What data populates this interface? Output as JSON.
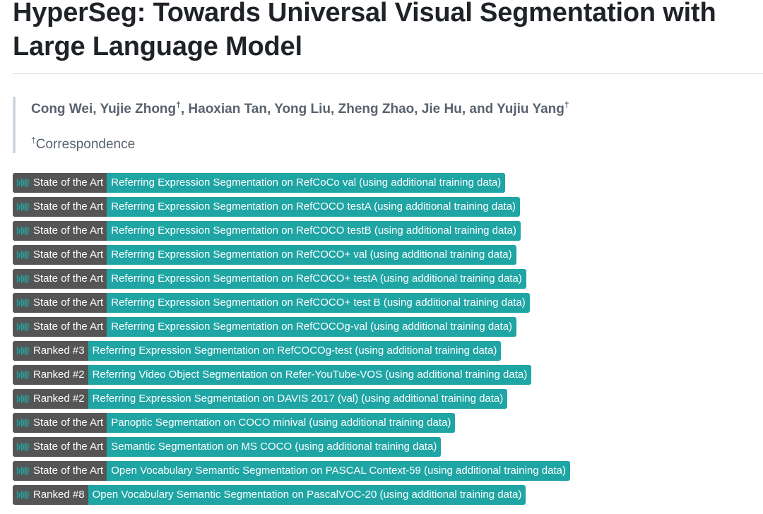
{
  "title": "HyperSeg: Towards Universal Visual Segmentation with Large Language Model",
  "authors": {
    "names": [
      {
        "name": "Cong Wei",
        "mark": ""
      },
      {
        "name": "Yujie Zhong",
        "mark": "†"
      },
      {
        "name": "Haoxian Tan",
        "mark": ""
      },
      {
        "name": "Yong Liu",
        "mark": ""
      },
      {
        "name": "Zheng Zhao",
        "mark": ""
      },
      {
        "name": "Jie Hu",
        "mark": ""
      },
      {
        "name": "Yujiu Yang",
        "mark": "†"
      }
    ],
    "conjunction": "and"
  },
  "correspondence": {
    "mark": "†",
    "label": "Correspondence"
  },
  "badges": [
    {
      "rank": "State of the Art",
      "task": "Referring Expression Segmentation on RefCoCo val (using additional training data)"
    },
    {
      "rank": "State of the Art",
      "task": "Referring Expression Segmentation on RefCOCO testA (using additional training data)"
    },
    {
      "rank": "State of the Art",
      "task": "Referring Expression Segmentation on RefCOCO testB (using additional training data)"
    },
    {
      "rank": "State of the Art",
      "task": "Referring Expression Segmentation on RefCOCO+ val (using additional training data)"
    },
    {
      "rank": "State of the Art",
      "task": "Referring Expression Segmentation on RefCOCO+ testA (using additional training data)"
    },
    {
      "rank": "State of the Art",
      "task": "Referring Expression Segmentation on RefCOCO+ test B (using additional training data)"
    },
    {
      "rank": "State of the Art",
      "task": "Referring Expression Segmentation on RefCOCOg-val (using additional training data)"
    },
    {
      "rank": "Ranked #3",
      "task": "Referring Expression Segmentation on RefCOCOg-test (using additional training data)"
    },
    {
      "rank": "Ranked #2",
      "task": "Referring Video Object Segmentation on Refer-YouTube-VOS (using additional training data)"
    },
    {
      "rank": "Ranked #2",
      "task": "Referring Expression Segmentation on DAVIS 2017 (val) (using additional training data)"
    },
    {
      "rank": "State of the Art",
      "task": "Panoptic Segmentation on COCO minival (using additional training data)"
    },
    {
      "rank": "State of the Art",
      "task": "Semantic Segmentation on MS COCO (using additional training data)"
    },
    {
      "rank": "State of the Art",
      "task": "Open Vocabulary Semantic Segmentation on PASCAL Context-59 (using additional training data)"
    },
    {
      "rank": "Ranked #8",
      "task": "Open Vocabulary Semantic Segmentation on PascalVOC-20 (using additional training data)"
    }
  ],
  "badge_icon": "bar-chart-icon",
  "colors": {
    "badge_left": "#555555",
    "badge_right": "#20a5a5",
    "heading": "#1f2328",
    "muted": "#59636e"
  }
}
